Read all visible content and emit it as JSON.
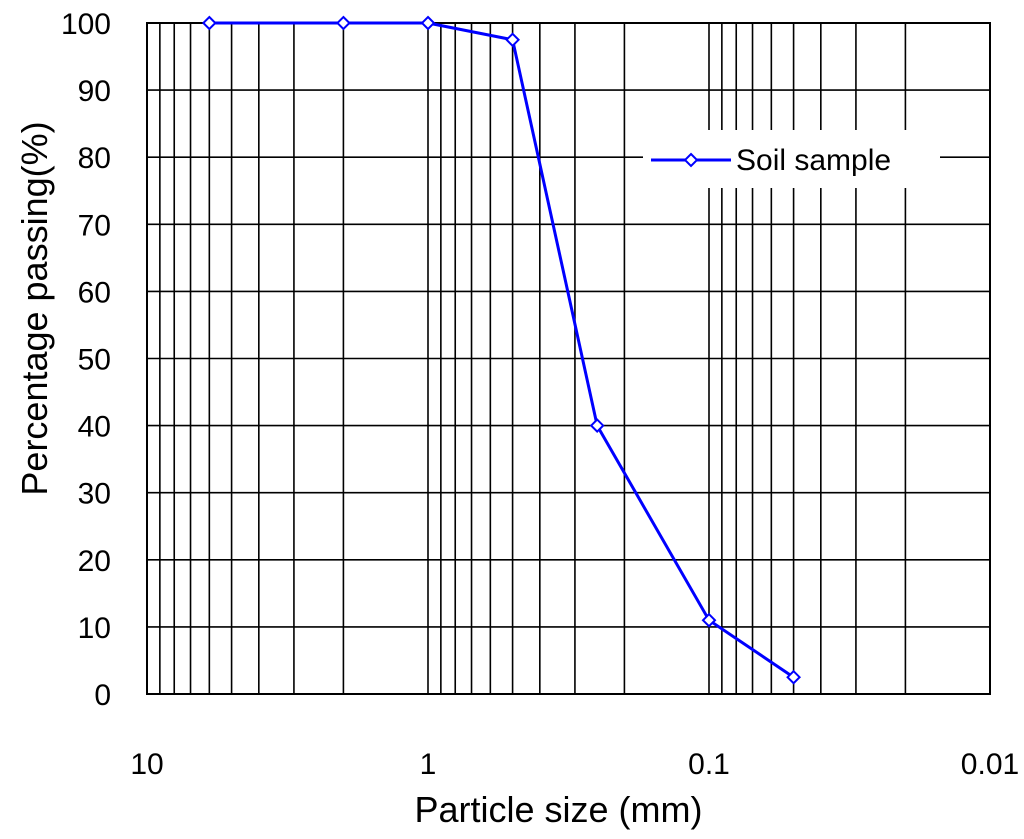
{
  "chart_data": {
    "type": "line",
    "title": "",
    "xlabel": "Particle size (mm)",
    "ylabel": "Percentage passing(%)",
    "x_scale": "log",
    "x_reversed": true,
    "xlim": [
      10,
      0.01
    ],
    "ylim": [
      0,
      100
    ],
    "grid": true,
    "legend_placement": "top-right",
    "x_ticks": [
      10,
      1,
      0.1,
      0.01
    ],
    "x_tick_labels": [
      "10",
      "1",
      "0.1",
      "0.01"
    ],
    "y_ticks": [
      0,
      10,
      20,
      30,
      40,
      50,
      60,
      70,
      80,
      90,
      100
    ],
    "y_tick_labels": [
      "0",
      "10",
      "20",
      "30",
      "40",
      "50",
      "60",
      "70",
      "80",
      "90",
      "100"
    ],
    "series": [
      {
        "name": "Soil sample",
        "color": "#0000ff",
        "marker": "diamond-open",
        "x": [
          6,
          2,
          1,
          0.5,
          0.25,
          0.1,
          0.05
        ],
        "y": [
          100,
          100,
          100,
          97.5,
          40,
          11,
          2.5
        ]
      }
    ]
  }
}
